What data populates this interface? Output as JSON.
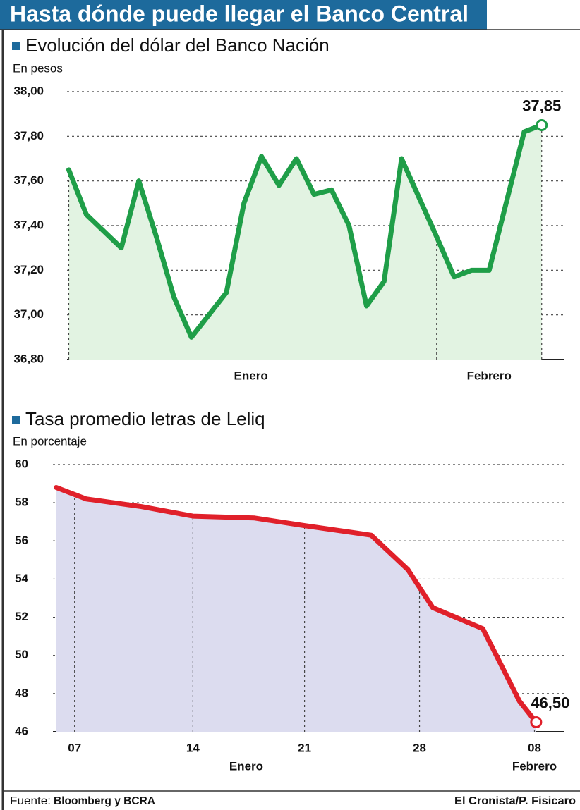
{
  "header": {
    "title": "Hasta dónde puede llegar el Banco Central"
  },
  "footer": {
    "source_label": "Fuente:",
    "source": "Bloomberg y BCRA",
    "credit": "El Cronista/P. Fisicaro"
  },
  "chart_data": [
    {
      "type": "line",
      "title": "Evolución del dólar del Banco Nación",
      "subtitle": "En pesos",
      "x": [
        0,
        1,
        3,
        4,
        5,
        6,
        7,
        9,
        10,
        11,
        12,
        13,
        14,
        15,
        16,
        17,
        18,
        19,
        21,
        22,
        23,
        24,
        26,
        27
      ],
      "series": [
        {
          "name": null,
          "color": "#1f9e48",
          "fill": "#e2f3e2",
          "values": [
            37.65,
            37.45,
            37.3,
            37.6,
            37.35,
            37.08,
            36.9,
            37.1,
            37.5,
            37.71,
            37.58,
            37.7,
            37.54,
            37.56,
            37.4,
            37.04,
            37.15,
            37.7,
            37.35,
            37.17,
            37.2,
            37.2,
            37.82,
            37.85
          ]
        }
      ],
      "annotations": [
        {
          "index": 23,
          "label": "37,85"
        }
      ],
      "xlim": [
        -0.1,
        28.3
      ],
      "xticks": [
        {
          "value": 10.4,
          "label": "Enero"
        },
        {
          "value": 24,
          "label": "Febrero"
        }
      ],
      "vlines": [
        0,
        21,
        27
      ],
      "ylim": [
        36.8,
        38.0
      ],
      "yticks": [
        {
          "value": 36.8,
          "label": "36,80"
        },
        {
          "value": 37.0,
          "label": "37,00"
        },
        {
          "value": 37.2,
          "label": "37,20"
        },
        {
          "value": 37.4,
          "label": "37,40"
        },
        {
          "value": 37.6,
          "label": "37,60"
        },
        {
          "value": 37.8,
          "label": "37,80"
        },
        {
          "value": 38.0,
          "label": "38,00"
        }
      ],
      "grid": true
    },
    {
      "type": "line",
      "title": "Tasa promedio letras de Leliq",
      "subtitle": "En porcentaje",
      "x": [
        0,
        1.8,
        5.1,
        8.2,
        11.9,
        14.9,
        18.9,
        21.1,
        22.6,
        25.6,
        27.8,
        28.8
      ],
      "series": [
        {
          "name": null,
          "color": "#e0202a",
          "fill": "#dcdcef",
          "values": [
            58.8,
            58.2,
            57.8,
            57.3,
            57.2,
            56.8,
            56.3,
            54.5,
            52.5,
            51.4,
            47.6,
            46.5
          ]
        }
      ],
      "annotations": [
        {
          "index": 11,
          "label": "46,50"
        }
      ],
      "xlim": [
        -0.2,
        30.5
      ],
      "xticks": [
        {
          "value": 1.1,
          "label": "07"
        },
        {
          "value": 8.2,
          "label": "14"
        },
        {
          "value": 14.9,
          "label": "21"
        },
        {
          "value": 21.8,
          "label": "28"
        },
        {
          "value": 28.7,
          "label": "08"
        }
      ],
      "month_labels": [
        {
          "value": 11.4,
          "label": "Enero"
        },
        {
          "value": 28.7,
          "label": "Febrero"
        }
      ],
      "ylim": [
        46,
        60
      ],
      "yticks": [
        46,
        48,
        50,
        52,
        54,
        56,
        58,
        60
      ],
      "grid": true,
      "xgrid": true
    }
  ]
}
